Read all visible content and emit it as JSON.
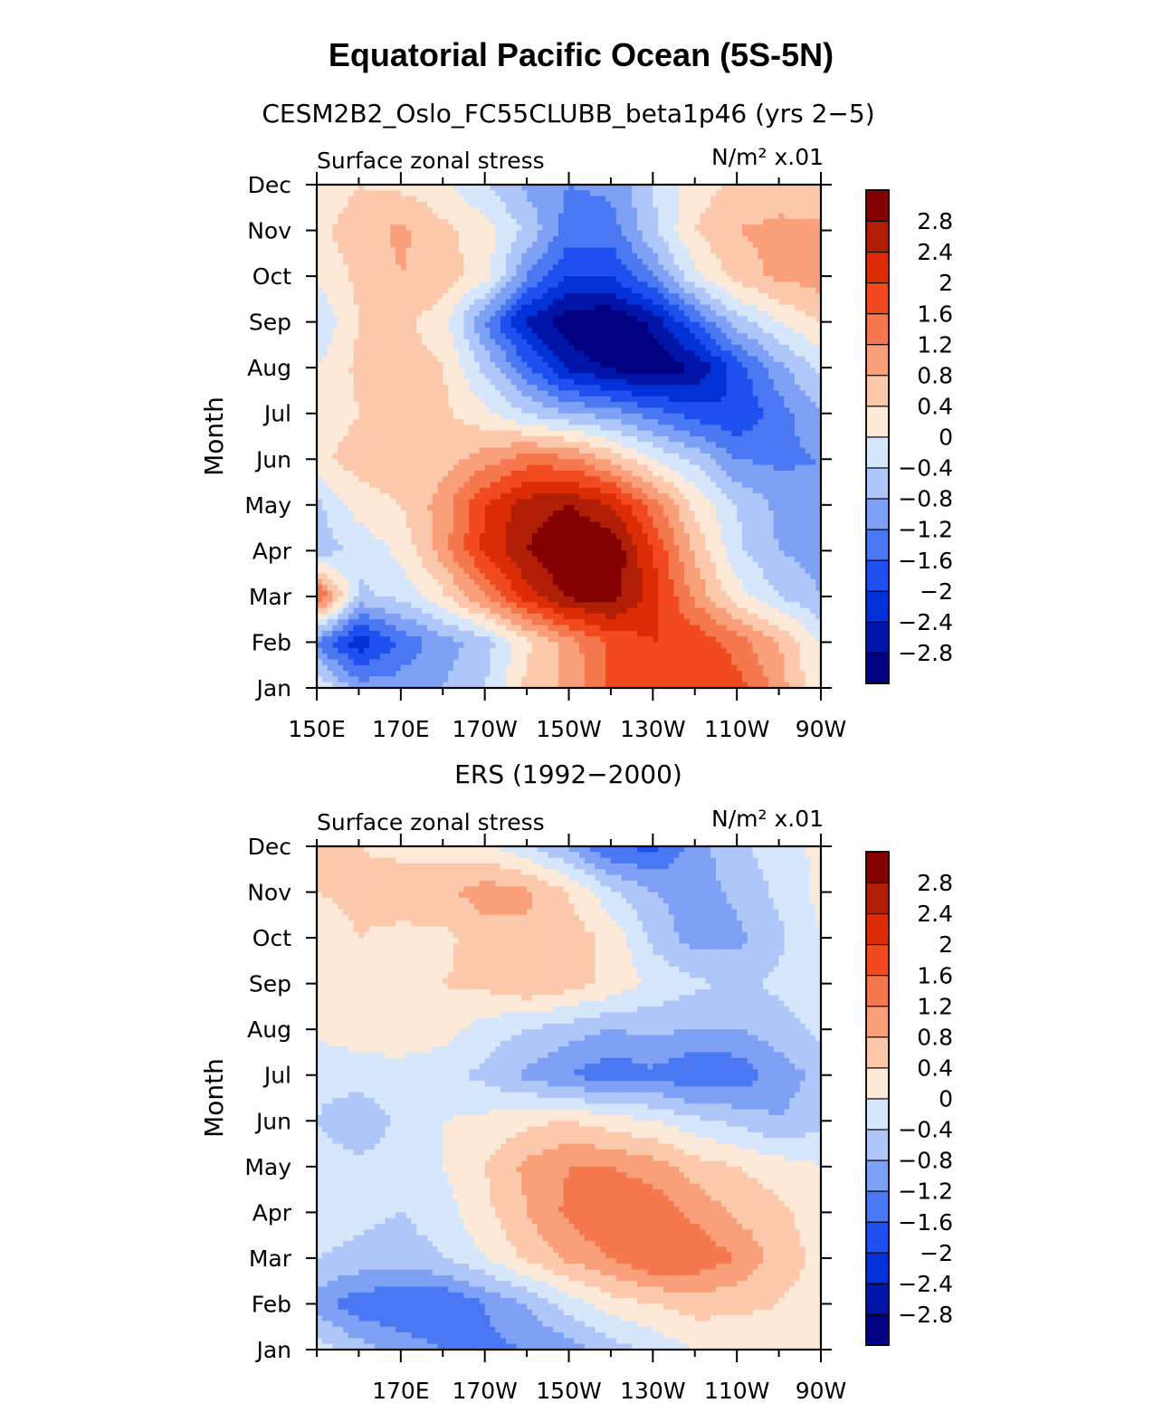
{
  "figure": {
    "title": "Equatorial Pacific Ocean (5S-5N)"
  },
  "colorbar": {
    "labels": [
      "2.8",
      "2.4",
      "2",
      "1.6",
      "1.2",
      "0.8",
      "0.4",
      "0",
      "−0.4",
      "−0.8",
      "−1.2",
      "−1.6",
      "−2",
      "−2.4",
      "−2.8"
    ],
    "colors": [
      "#000080",
      "#0014a8",
      "#0032d8",
      "#1e50f0",
      "#4a78f2",
      "#7ea0f5",
      "#aec6f8",
      "#d6e6fb",
      "#fde9d8",
      "#fcc9ad",
      "#f9a07a",
      "#f6784e",
      "#f04a1e",
      "#dc2c06",
      "#b01e06",
      "#820000"
    ]
  },
  "chart_data": [
    {
      "type": "heatmap",
      "title": "CESM2B2_Oslo_FC55CLUBB_beta1p46 (yrs 2−5)",
      "left_label": "Surface zonal stress",
      "right_label": "N/m² x.01",
      "ylabel": "Month",
      "xlabel": "",
      "xlim": [
        150,
        270
      ],
      "x_ticks": [
        150,
        170,
        190,
        210,
        230,
        250,
        270
      ],
      "x_ticklabels": [
        "150E",
        "170E",
        "170W",
        "150W",
        "130W",
        "110W",
        "90W"
      ],
      "y_ticklabels": [
        "Jan",
        "Feb",
        "Mar",
        "Apr",
        "May",
        "Jun",
        "Jul",
        "Aug",
        "Sep",
        "Oct",
        "Nov",
        "Dec"
      ],
      "levels": [
        -2.8,
        -2.4,
        -2.0,
        -1.6,
        -1.2,
        -0.8,
        -0.4,
        0,
        0.4,
        0.8,
        1.2,
        1.6,
        2.0,
        2.4,
        2.8
      ],
      "x": [
        150,
        160,
        170,
        180,
        190,
        200,
        210,
        220,
        230,
        240,
        250,
        260,
        270
      ],
      "months": [
        "Jan",
        "Feb",
        "Mar",
        "Apr",
        "May",
        "Jun",
        "Jul",
        "Aug",
        "Sep",
        "Oct",
        "Nov",
        "Dec"
      ],
      "values": [
        [
          0.0,
          -1.0,
          -1.0,
          -0.8,
          -0.4,
          0.5,
          0.9,
          1.7,
          2.0,
          2.0,
          1.8,
          1.0,
          0.0
        ],
        [
          -1.3,
          -2.3,
          -1.5,
          -1.0,
          -0.6,
          0.3,
          1.0,
          1.7,
          2.0,
          1.9,
          1.4,
          0.8,
          0.0
        ],
        [
          1.8,
          -0.5,
          -0.3,
          0.3,
          1.2,
          2.2,
          2.9,
          3.0,
          2.2,
          1.1,
          0.2,
          -0.4,
          -0.8
        ],
        [
          -0.6,
          -0.3,
          0.1,
          1.0,
          2.1,
          2.8,
          3.2,
          3.2,
          2.0,
          0.7,
          -0.3,
          -0.8,
          -1.0
        ],
        [
          -0.5,
          0.2,
          0.4,
          1.0,
          2.0,
          2.6,
          2.8,
          2.4,
          1.4,
          0.3,
          -0.4,
          -0.9,
          -1.0
        ],
        [
          0.3,
          0.6,
          0.6,
          0.6,
          1.0,
          1.4,
          1.3,
          0.7,
          0.0,
          -0.5,
          -1.2,
          -1.3,
          -1.2
        ],
        [
          0.1,
          0.4,
          0.6,
          0.5,
          0.1,
          -0.4,
          -0.8,
          -1.0,
          -1.4,
          -1.8,
          -2.0,
          -1.4,
          -0.8
        ],
        [
          0.0,
          0.5,
          0.6,
          0.4,
          -0.5,
          -1.5,
          -2.5,
          -2.9,
          -3.1,
          -2.8,
          -1.8,
          -0.9,
          -0.3
        ],
        [
          -0.4,
          0.4,
          0.5,
          0.2,
          -1.2,
          -2.5,
          -3.1,
          -3.2,
          -2.7,
          -1.6,
          -0.6,
          0.0,
          0.4
        ],
        [
          0.1,
          0.5,
          0.8,
          0.6,
          0.2,
          -1.2,
          -2.0,
          -2.0,
          -1.2,
          -0.1,
          0.6,
          0.9,
          1.0
        ],
        [
          0.3,
          0.6,
          0.9,
          0.5,
          0.2,
          -0.5,
          -1.4,
          -1.4,
          -0.5,
          0.4,
          0.8,
          0.9,
          0.9
        ],
        [
          0.1,
          0.4,
          0.3,
          0.1,
          -0.4,
          -0.9,
          -1.2,
          -1.1,
          -0.4,
          0.2,
          0.5,
          0.6,
          0.4
        ]
      ]
    },
    {
      "type": "heatmap",
      "title": "ERS (1992−2000)",
      "left_label": "Surface zonal stress",
      "right_label": "N/m² x.01",
      "ylabel": "Month",
      "xlabel": "",
      "xlim": [
        150,
        270
      ],
      "x_ticks": [
        170,
        190,
        210,
        230,
        250,
        270
      ],
      "x_ticklabels": [
        "170E",
        "170W",
        "150W",
        "130W",
        "110W",
        "90W"
      ],
      "y_ticklabels": [
        "Jan",
        "Feb",
        "Mar",
        "Apr",
        "May",
        "Jun",
        "Jul",
        "Aug",
        "Sep",
        "Oct",
        "Nov",
        "Dec"
      ],
      "levels": [
        -2.8,
        -2.4,
        -2.0,
        -1.6,
        -1.2,
        -0.8,
        -0.4,
        0,
        0.4,
        0.8,
        1.2,
        1.6,
        2.0,
        2.4,
        2.8
      ],
      "x": [
        150,
        160,
        170,
        180,
        190,
        200,
        210,
        220,
        230,
        240,
        250,
        260,
        270
      ],
      "months": [
        "Jan",
        "Feb",
        "Mar",
        "Apr",
        "May",
        "Jun",
        "Jul",
        "Aug",
        "Sep",
        "Oct",
        "Nov",
        "Dec"
      ],
      "values": [
        [
          -0.2,
          -0.6,
          -1.0,
          -1.2,
          -1.3,
          -1.2,
          -1.0,
          -0.6,
          -0.3,
          0.0,
          0.1,
          0.2,
          0.0
        ],
        [
          -1.0,
          -1.5,
          -1.5,
          -1.6,
          -1.2,
          -0.8,
          -0.2,
          0.2,
          0.4,
          0.6,
          0.5,
          0.4,
          0.2
        ],
        [
          -0.4,
          -0.5,
          -0.6,
          -0.4,
          0.0,
          0.5,
          0.9,
          1.2,
          1.6,
          1.5,
          1.2,
          0.6,
          0.3
        ],
        [
          -0.2,
          -0.3,
          -0.4,
          -0.2,
          0.3,
          0.8,
          1.3,
          1.6,
          1.5,
          1.1,
          0.7,
          0.5,
          0.2
        ],
        [
          -0.2,
          -0.3,
          -0.2,
          0.0,
          0.4,
          0.9,
          1.2,
          1.2,
          1.0,
          0.6,
          0.4,
          0.2,
          0.0
        ],
        [
          -0.4,
          -0.7,
          -0.3,
          0.0,
          0.1,
          0.3,
          0.4,
          0.2,
          0.0,
          -0.3,
          -0.5,
          -0.8,
          -0.5
        ],
        [
          -0.3,
          -0.2,
          -0.2,
          -0.3,
          -0.5,
          -0.9,
          -1.2,
          -1.5,
          -1.3,
          -1.6,
          -1.5,
          -1.0,
          -0.7
        ],
        [
          0.1,
          0.2,
          0.3,
          0.2,
          -0.2,
          -0.4,
          -0.6,
          -0.8,
          -0.7,
          -0.8,
          -0.8,
          -0.6,
          -0.3
        ],
        [
          0.3,
          0.4,
          0.3,
          0.4,
          0.5,
          0.8,
          0.6,
          0.3,
          -0.1,
          -0.3,
          -0.5,
          -0.3,
          -0.1
        ],
        [
          0.2,
          0.4,
          0.3,
          0.3,
          0.6,
          0.7,
          0.6,
          0.3,
          -0.5,
          -1.0,
          -0.9,
          -0.5,
          0.0
        ],
        [
          0.4,
          0.5,
          0.6,
          0.7,
          1.0,
          0.9,
          0.4,
          -0.3,
          -0.8,
          -1.0,
          -0.7,
          -0.3,
          0.1
        ],
        [
          0.5,
          0.4,
          0.3,
          0.2,
          0.1,
          -0.3,
          -0.9,
          -1.6,
          -1.7,
          -1.0,
          -0.5,
          -0.2,
          0.1
        ]
      ]
    }
  ]
}
